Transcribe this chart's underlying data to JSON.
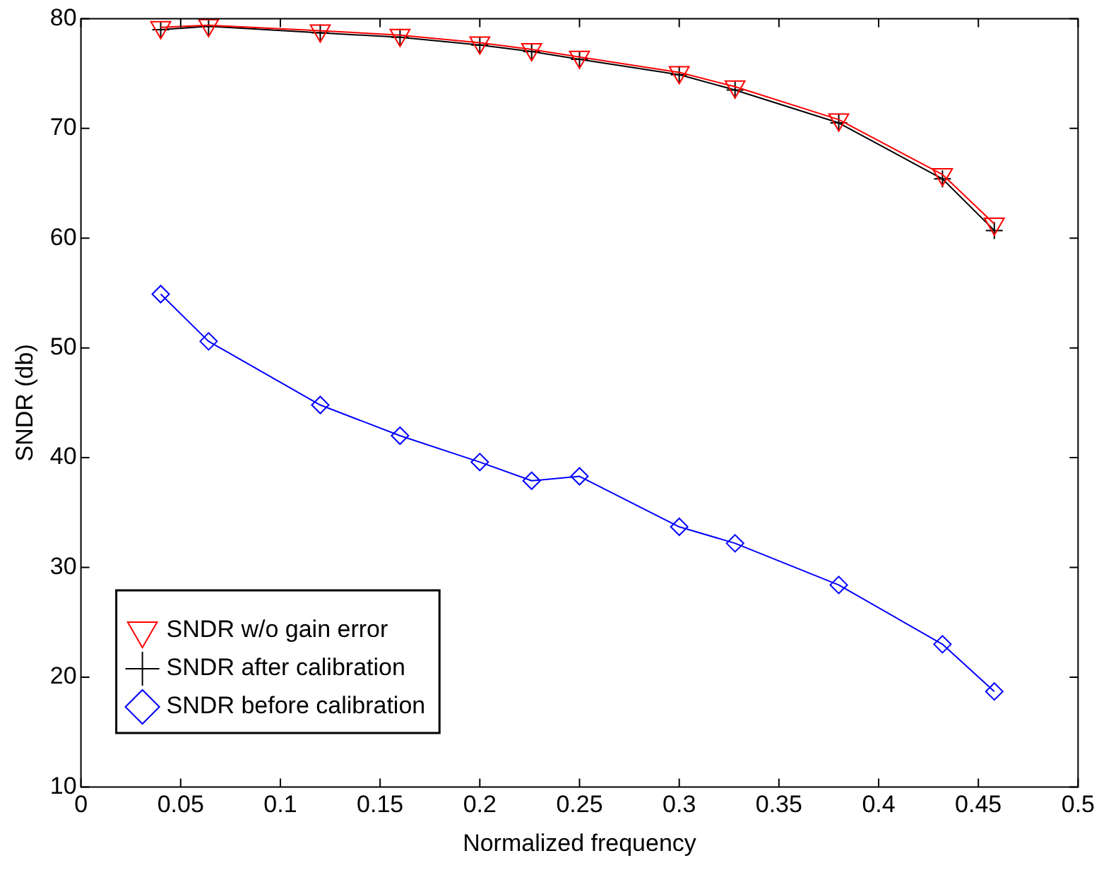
{
  "chart_data": {
    "type": "line",
    "xlabel": "Normalized frequency",
    "ylabel": "SNDR (db)",
    "x": [
      0.04,
      0.064,
      0.12,
      0.16,
      0.2,
      0.226,
      0.25,
      0.3,
      0.328,
      0.38,
      0.432,
      0.458
    ],
    "xlim": [
      0,
      0.5
    ],
    "xticks": [
      0,
      0.05,
      0.1,
      0.15,
      0.2,
      0.25,
      0.3,
      0.35,
      0.4,
      0.45,
      0.5
    ],
    "ylim": [
      10,
      80
    ],
    "yticks": [
      10,
      20,
      30,
      40,
      50,
      60,
      70,
      80
    ],
    "grid": false,
    "legend": "bottom left",
    "series": [
      {
        "name": "SNDR w/o gain error",
        "color": "#ff0000",
        "marker": "triangle",
        "values": [
          79.2,
          79.4,
          78.9,
          78.5,
          77.8,
          77.2,
          76.5,
          75.1,
          73.8,
          70.8,
          65.8,
          61.3
        ]
      },
      {
        "name": "SNDR after calibration",
        "color": "#000000",
        "marker": "cross",
        "values": [
          79.0,
          79.3,
          78.7,
          78.3,
          77.6,
          77.0,
          76.3,
          74.9,
          73.5,
          70.5,
          65.4,
          60.7
        ]
      },
      {
        "name": "SNDR before calibration",
        "color": "#0000ff",
        "marker": "diamond",
        "values": [
          54.9,
          50.6,
          44.8,
          42.0,
          39.6,
          37.9,
          38.3,
          33.7,
          32.2,
          28.4,
          23.0,
          18.7
        ]
      }
    ]
  }
}
